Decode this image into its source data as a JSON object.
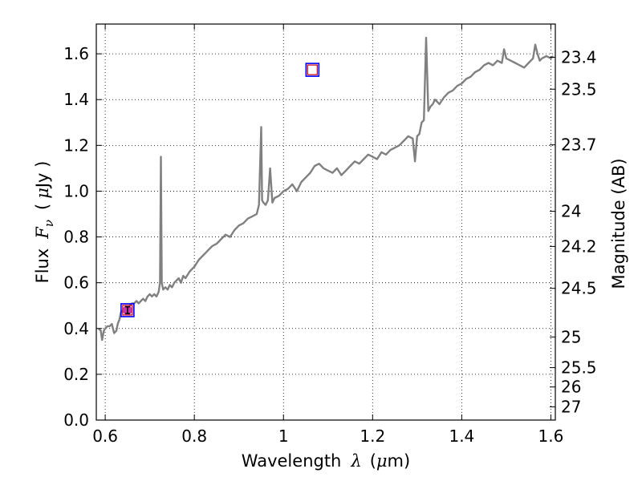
{
  "chart_data": {
    "type": "line",
    "xlabel": {
      "text": "Wavelength",
      "symbol": "λ",
      "unit_open": "(",
      "unit_mu": "μ",
      "unit_rest": "m)"
    },
    "ylabel": {
      "text": "Flux",
      "symbol": "F",
      "subscript": "ν",
      "unit_open": "(",
      "unit_mu": "μ",
      "unit_rest": "Jy )"
    },
    "y2label": "Magnitude (AB)",
    "xlim": [
      0.58,
      1.61
    ],
    "ylim": [
      0.0,
      1.73
    ],
    "x_ticks": [
      0.6,
      0.8,
      1.0,
      1.2,
      1.4,
      1.6
    ],
    "x_tick_labels": [
      "0.6",
      "0.8",
      "1",
      "1.2",
      "1.4",
      "1.6"
    ],
    "y_ticks": [
      0.0,
      0.2,
      0.4,
      0.6,
      0.8,
      1.0,
      1.2,
      1.4,
      1.6
    ],
    "y_tick_labels": [
      "0.0",
      "0.2",
      "0.4",
      "0.6",
      "0.8",
      "1.0",
      "1.2",
      "1.4",
      "1.6"
    ],
    "mag_ticks": [
      23.4,
      23.5,
      23.7,
      24,
      24.2,
      24.5,
      25,
      25.5,
      26,
      27
    ],
    "mag_tick_labels": [
      "23.4",
      "23.5",
      "23.7",
      "24",
      "24.2",
      "24.5",
      "25",
      "25.5",
      "26",
      "27"
    ],
    "grid": true,
    "series": [
      {
        "color": "#808080",
        "x": [
          0.585,
          0.59,
          0.593,
          0.597,
          0.6,
          0.605,
          0.61,
          0.615,
          0.62,
          0.625,
          0.628,
          0.632,
          0.635,
          0.64,
          0.645,
          0.65,
          0.655,
          0.66,
          0.665,
          0.67,
          0.675,
          0.68,
          0.685,
          0.69,
          0.695,
          0.7,
          0.705,
          0.71,
          0.715,
          0.72,
          0.723,
          0.725,
          0.727,
          0.73,
          0.735,
          0.74,
          0.745,
          0.75,
          0.755,
          0.76,
          0.765,
          0.77,
          0.775,
          0.78,
          0.79,
          0.8,
          0.81,
          0.82,
          0.83,
          0.84,
          0.85,
          0.86,
          0.87,
          0.88,
          0.89,
          0.9,
          0.91,
          0.92,
          0.93,
          0.94,
          0.945,
          0.95,
          0.952,
          0.955,
          0.96,
          0.965,
          0.97,
          0.975,
          0.98,
          0.99,
          1.0,
          1.01,
          1.02,
          1.03,
          1.04,
          1.05,
          1.06,
          1.07,
          1.08,
          1.09,
          1.1,
          1.11,
          1.12,
          1.13,
          1.14,
          1.15,
          1.16,
          1.17,
          1.18,
          1.19,
          1.2,
          1.21,
          1.22,
          1.23,
          1.24,
          1.25,
          1.26,
          1.27,
          1.28,
          1.29,
          1.295,
          1.3,
          1.305,
          1.31,
          1.315,
          1.32,
          1.325,
          1.33,
          1.335,
          1.34,
          1.35,
          1.36,
          1.37,
          1.38,
          1.39,
          1.4,
          1.41,
          1.42,
          1.43,
          1.44,
          1.45,
          1.46,
          1.47,
          1.48,
          1.49,
          1.495,
          1.5,
          1.51,
          1.52,
          1.53,
          1.54,
          1.55,
          1.56,
          1.565,
          1.57,
          1.575,
          1.58,
          1.59,
          1.6,
          1.605
        ],
        "y": [
          0.4,
          0.39,
          0.35,
          0.39,
          0.4,
          0.41,
          0.41,
          0.42,
          0.38,
          0.39,
          0.42,
          0.44,
          0.47,
          0.48,
          0.47,
          0.49,
          0.5,
          0.51,
          0.51,
          0.52,
          0.51,
          0.52,
          0.53,
          0.52,
          0.54,
          0.55,
          0.54,
          0.55,
          0.54,
          0.56,
          0.6,
          1.15,
          0.6,
          0.57,
          0.58,
          0.57,
          0.59,
          0.58,
          0.6,
          0.61,
          0.62,
          0.6,
          0.63,
          0.62,
          0.65,
          0.67,
          0.7,
          0.72,
          0.74,
          0.76,
          0.77,
          0.79,
          0.81,
          0.8,
          0.83,
          0.85,
          0.86,
          0.88,
          0.89,
          0.9,
          0.94,
          1.28,
          0.96,
          0.95,
          0.94,
          0.96,
          1.1,
          0.95,
          0.97,
          0.98,
          1.0,
          1.01,
          1.03,
          1.0,
          1.04,
          1.06,
          1.08,
          1.11,
          1.12,
          1.1,
          1.09,
          1.08,
          1.1,
          1.07,
          1.09,
          1.11,
          1.13,
          1.12,
          1.14,
          1.16,
          1.15,
          1.14,
          1.17,
          1.16,
          1.18,
          1.19,
          1.2,
          1.22,
          1.24,
          1.23,
          1.13,
          1.24,
          1.25,
          1.3,
          1.31,
          1.67,
          1.35,
          1.37,
          1.38,
          1.4,
          1.38,
          1.41,
          1.43,
          1.44,
          1.46,
          1.47,
          1.49,
          1.5,
          1.52,
          1.53,
          1.55,
          1.56,
          1.55,
          1.57,
          1.56,
          1.62,
          1.58,
          1.57,
          1.56,
          1.55,
          1.54,
          1.56,
          1.58,
          1.64,
          1.6,
          1.57,
          1.58,
          1.59,
          1.58,
          1.59
        ]
      }
    ],
    "markers": [
      {
        "shape": "square-open",
        "x": 1.065,
        "y": 1.53,
        "edge_colors": [
          "#0000ff",
          "#cc0000"
        ]
      },
      {
        "shape": "square-open",
        "x": 0.65,
        "y": 0.48,
        "edge_colors": [
          "#0000ff",
          "#cc0000"
        ]
      },
      {
        "shape": "circle-errorbar",
        "x": 0.65,
        "y": 0.48,
        "yerr": 0.015,
        "color": "#cc33aa"
      }
    ]
  }
}
